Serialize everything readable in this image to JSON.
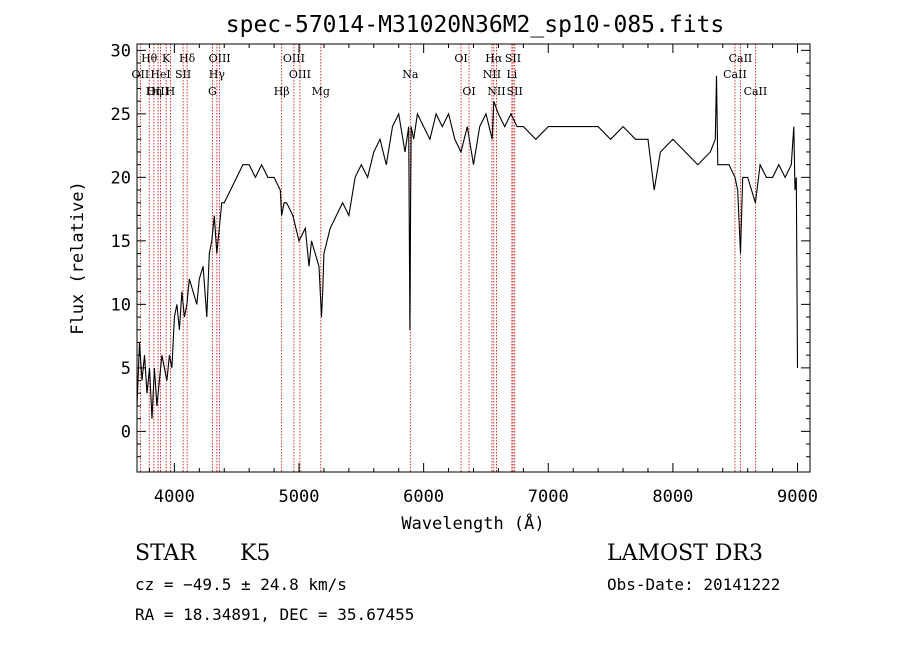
{
  "chart_data": {
    "type": "line",
    "title": "spec-57014-M31020N36M2_sp10-085.fits",
    "xlabel": "Wavelength (Å)",
    "ylabel": "Flux (relative)",
    "xlim": [
      3700,
      9100
    ],
    "ylim": [
      -3.2,
      30.5
    ],
    "xticks": [
      4000,
      5000,
      6000,
      7000,
      8000,
      9000
    ],
    "yticks": [
      0,
      5,
      10,
      15,
      20,
      25,
      30
    ],
    "grid": false,
    "series": [
      {
        "name": "flux",
        "x": [
          3700,
          3720,
          3740,
          3760,
          3780,
          3800,
          3820,
          3840,
          3860,
          3880,
          3900,
          3920,
          3940,
          3960,
          3980,
          4000,
          4020,
          4040,
          4060,
          4080,
          4100,
          4120,
          4150,
          4180,
          4200,
          4230,
          4260,
          4280,
          4300,
          4320,
          4340,
          4360,
          4380,
          4400,
          4450,
          4500,
          4550,
          4600,
          4650,
          4700,
          4750,
          4800,
          4850,
          4860,
          4880,
          4900,
          4950,
          5000,
          5050,
          5080,
          5100,
          5130,
          5160,
          5180,
          5190,
          5200,
          5250,
          5300,
          5350,
          5400,
          5450,
          5500,
          5550,
          5600,
          5650,
          5700,
          5750,
          5800,
          5850,
          5880,
          5890,
          5895,
          5900,
          5920,
          5950,
          6000,
          6050,
          6100,
          6150,
          6200,
          6250,
          6300,
          6350,
          6400,
          6450,
          6500,
          6550,
          6563,
          6600,
          6650,
          6700,
          6750,
          6800,
          6900,
          7000,
          7100,
          7200,
          7300,
          7400,
          7500,
          7600,
          7700,
          7800,
          7850,
          7900,
          8000,
          8100,
          8200,
          8300,
          8340,
          8350,
          8360,
          8400,
          8450,
          8498,
          8520,
          8542,
          8560,
          8600,
          8662,
          8700,
          8750,
          8800,
          8850,
          8900,
          8950,
          8970,
          8980,
          8990,
          9000
        ],
        "values": [
          2,
          7,
          4,
          6,
          3,
          5,
          1,
          5,
          2,
          4,
          6,
          5,
          4,
          6,
          5,
          9,
          10,
          8,
          11,
          9,
          10,
          12,
          11,
          10,
          12,
          13,
          9,
          14,
          15,
          17,
          14,
          16,
          18,
          18,
          19,
          20,
          21,
          21,
          20,
          21,
          20,
          20,
          19,
          17,
          18,
          18,
          17,
          15,
          16,
          13,
          15,
          14,
          13,
          9,
          11,
          14,
          16,
          17,
          18,
          17,
          20,
          21,
          20,
          22,
          23,
          21,
          24,
          25,
          22,
          24,
          8,
          18,
          24,
          23,
          25,
          24,
          23,
          25,
          24,
          25,
          23,
          22,
          24,
          21,
          24,
          25,
          23,
          26,
          25,
          24,
          25,
          24,
          24,
          23,
          24,
          24,
          24,
          24,
          24,
          23,
          24,
          23,
          23,
          19,
          22,
          23,
          22,
          21,
          22,
          23,
          28,
          21,
          21,
          21,
          20,
          19,
          14,
          20,
          20,
          18,
          21,
          20,
          20,
          21,
          20,
          21,
          24,
          19,
          20,
          5
        ]
      }
    ],
    "annotations": {
      "lines": [
        {
          "label": "Hθ",
          "x": 3798,
          "row": 1
        },
        {
          "label": "OII",
          "x": 3727,
          "row": 2
        },
        {
          "label": "OIII",
          "x": 3869,
          "row": 3
        },
        {
          "label": "K",
          "x": 3934,
          "row": 1
        },
        {
          "label": "HeI",
          "x": 3889,
          "row": 2
        },
        {
          "label": "Hη",
          "x": 3835,
          "row": 3
        },
        {
          "label": "SII",
          "x": 4070,
          "row": 2
        },
        {
          "label": "H",
          "x": 3968,
          "row": 3
        },
        {
          "label": "Hδ",
          "x": 4102,
          "row": 1
        },
        {
          "label": "OIII",
          "x": 4363,
          "row": 1
        },
        {
          "label": "Hγ",
          "x": 4341,
          "row": 2
        },
        {
          "label": "G",
          "x": 4305,
          "row": 3
        },
        {
          "label": "OIII",
          "x": 4959,
          "row": 1
        },
        {
          "label": "OIII",
          "x": 5007,
          "row": 2
        },
        {
          "label": "Hβ",
          "x": 4861,
          "row": 3
        },
        {
          "label": "Mg",
          "x": 5175,
          "row": 3
        },
        {
          "label": "Na",
          "x": 5893,
          "row": 2
        },
        {
          "label": "OI",
          "x": 6300,
          "row": 1
        },
        {
          "label": "OI",
          "x": 6364,
          "row": 3
        },
        {
          "label": "Hα",
          "x": 6563,
          "row": 1
        },
        {
          "label": "SII",
          "x": 6717,
          "row": 1
        },
        {
          "label": "NII",
          "x": 6548,
          "row": 2
        },
        {
          "label": "Li",
          "x": 6708,
          "row": 2
        },
        {
          "label": "NII",
          "x": 6584,
          "row": 3
        },
        {
          "label": "SII",
          "x": 6731,
          "row": 3
        },
        {
          "label": "CaII",
          "x": 8542,
          "row": 1
        },
        {
          "label": "CaII",
          "x": 8498,
          "row": 2
        },
        {
          "label": "CaII",
          "x": 8662,
          "row": 3
        }
      ]
    }
  },
  "info": {
    "class": "STAR",
    "subclass": "K5",
    "survey": "LAMOST DR3",
    "cz": "cz = −49.5 ± 24.8 km/s",
    "obs_date": "Obs-Date: 20141222",
    "coords": "RA =  18.34891, DEC =  35.67455"
  },
  "colors": {
    "line": "#000000",
    "marker": "#cc0000"
  }
}
